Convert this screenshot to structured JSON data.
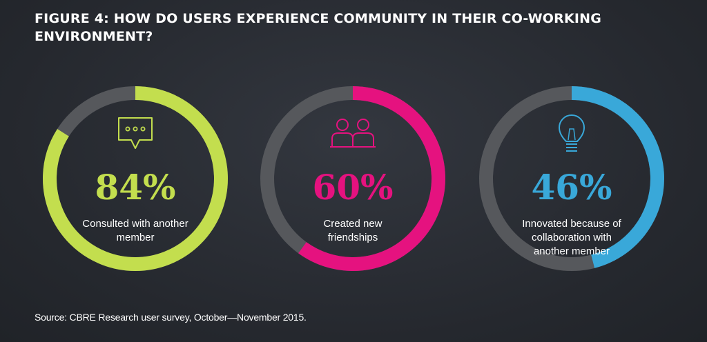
{
  "chart_data": {
    "type": "donut",
    "title": "FIGURE 4: HOW DO USERS EXPERIENCE COMMUNITY IN THEIR CO-WORKING ENVIRONMENT?",
    "items": [
      {
        "value": 84,
        "value_label": "84%",
        "label_lines": [
          "Consulted with another",
          "member"
        ],
        "color": "#c3de4e",
        "icon": "speech-bubble-icon"
      },
      {
        "value": 60,
        "value_label": "60%",
        "label_lines": [
          "Created new",
          "friendships"
        ],
        "color": "#e5127f",
        "icon": "two-people-icon"
      },
      {
        "value": 46,
        "value_label": "46%",
        "label_lines": [
          "Innovated because of",
          "collaboration with",
          "another member"
        ],
        "color": "#39a8d9",
        "icon": "lightbulb-icon"
      }
    ],
    "track_color": "#56585c",
    "source": "Source: CBRE Research user survey, October—November 2015."
  }
}
